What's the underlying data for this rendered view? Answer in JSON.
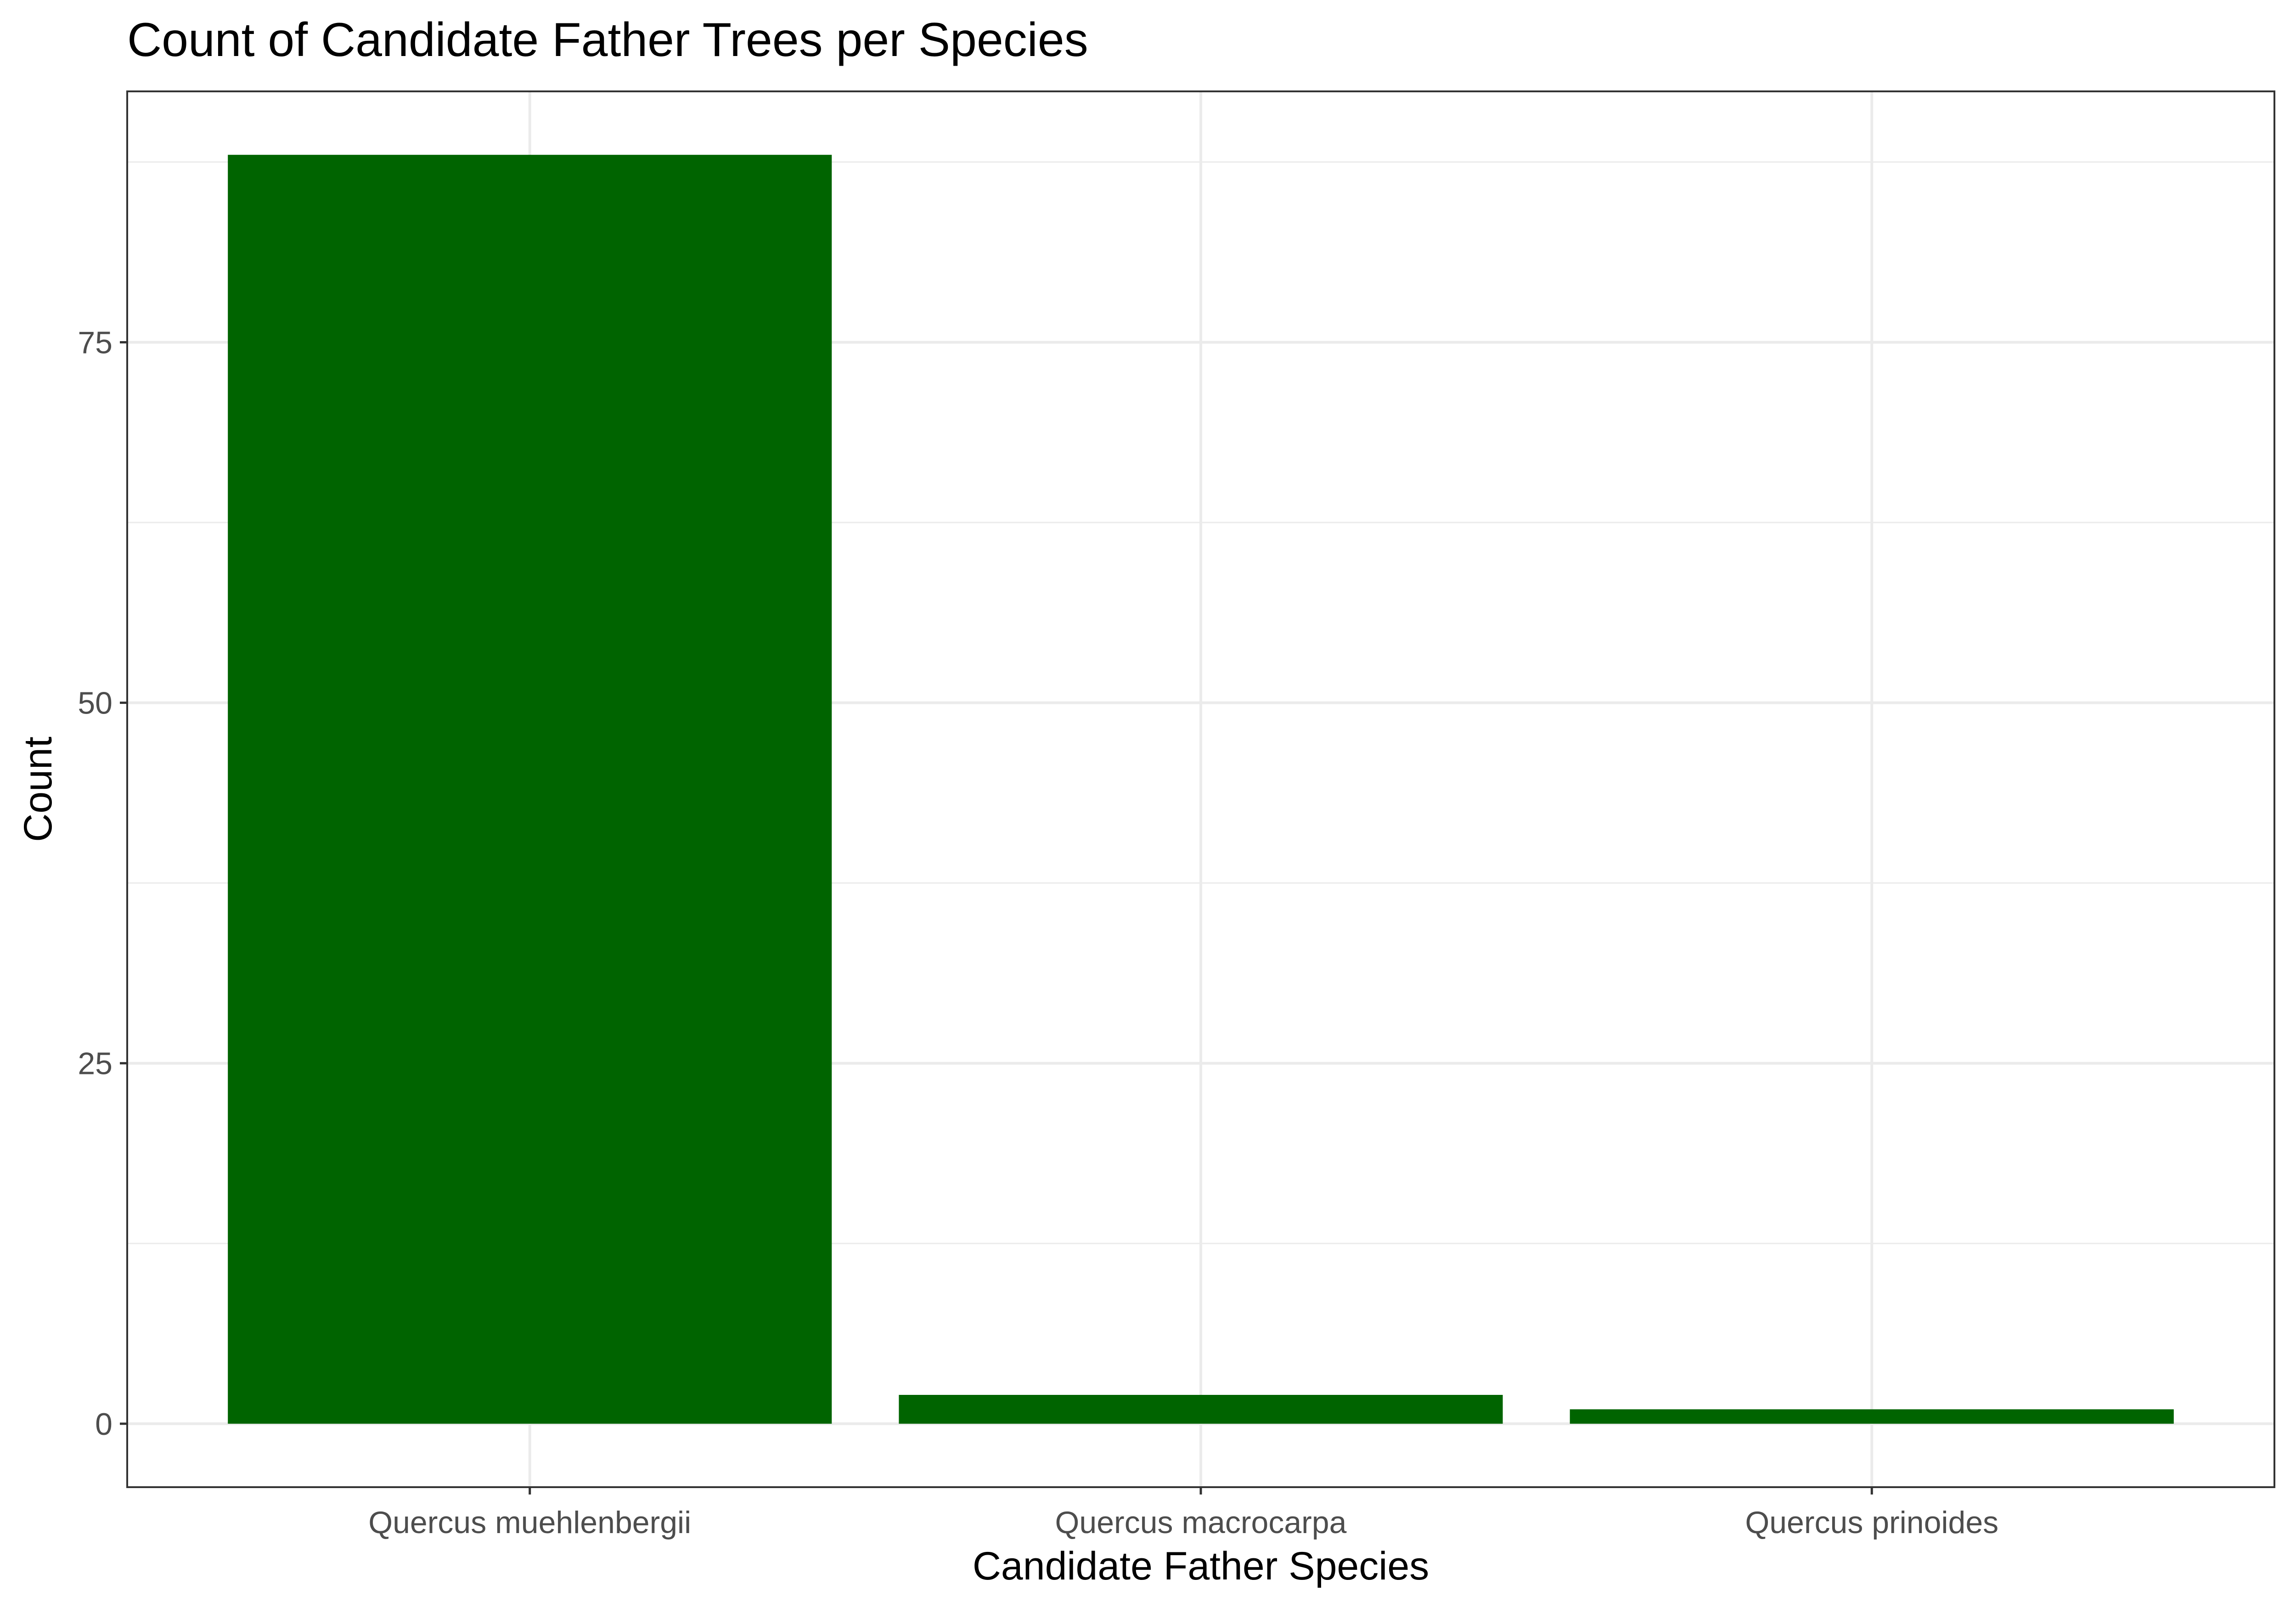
{
  "chart_data": {
    "type": "bar",
    "title": "Count of Candidate Father Trees per Species",
    "xlabel": "Candidate Father Species",
    "ylabel": "Count",
    "categories": [
      "Quercus muehlenbergii",
      "Quercus macrocarpa",
      "Quercus prinoides"
    ],
    "values": [
      88,
      2,
      1
    ],
    "ylim": [
      -4.4,
      92.4
    ],
    "yticks": [
      0,
      25,
      50,
      75
    ],
    "yticks_minor": [
      12.5,
      37.5,
      62.5,
      87.5
    ],
    "grid": true,
    "legend": "none",
    "bar_color": "#006400",
    "panel_background": "#ffffff",
    "grid_color": "#ebebeb",
    "border_color": "#333333"
  }
}
